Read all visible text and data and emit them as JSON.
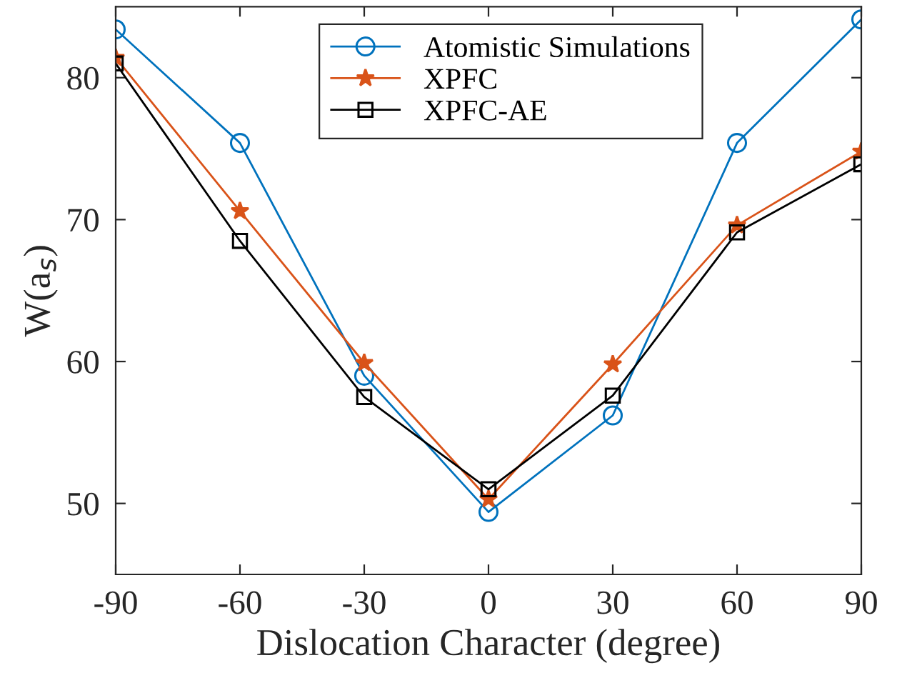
{
  "chart_data": {
    "type": "line",
    "xlabel": "Dislocation Character (degree)",
    "ylabel": "W(a$_{s}$)",
    "x": [
      -90,
      -60,
      -30,
      0,
      30,
      60,
      90
    ],
    "series": [
      {
        "name": "Atomistic Simulations",
        "color": "#0072bd",
        "marker": "circle",
        "values": [
          83.4,
          75.4,
          59.0,
          49.4,
          56.2,
          75.4,
          84.1
        ]
      },
      {
        "name": "XPFC",
        "color": "#d95319",
        "marker": "star",
        "values": [
          81.4,
          70.6,
          59.9,
          50.3,
          59.8,
          69.6,
          74.8
        ]
      },
      {
        "name": "XPFC-AE",
        "color": "#000000",
        "marker": "square",
        "values": [
          81.0,
          68.5,
          57.5,
          51.0,
          57.6,
          69.1,
          73.9
        ]
      }
    ],
    "xlim": [
      -90,
      90
    ],
    "xticks": [
      -90,
      -60,
      -30,
      0,
      30,
      60,
      90
    ],
    "ylim": [
      45,
      85
    ],
    "yticks": [
      50,
      60,
      70,
      80
    ],
    "legend": "top",
    "grid": false
  }
}
